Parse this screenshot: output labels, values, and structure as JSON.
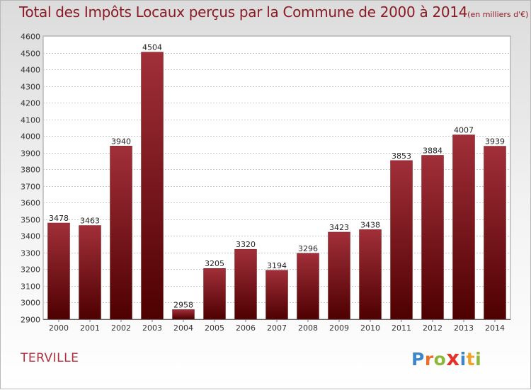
{
  "header": {
    "title": "Total des Impôts Locaux perçus par la Commune de 2000 à 2014",
    "unit": "(en milliers d'€)"
  },
  "footer": {
    "commune": "TERVILLE",
    "logo_text": "Proxiti"
  },
  "colors": {
    "title": "#8b1a24",
    "bar_top": "#a12f3a",
    "bar_bottom": "#4e0000",
    "commune": "#b03040",
    "logo_letters": [
      "#3f86c8",
      "#e96d2c",
      "#8cb83a",
      "#e3322b",
      "#3f86c8",
      "#f1a32c",
      "#8cb83a"
    ]
  },
  "chart_data": {
    "type": "bar",
    "title": "Total des Impôts Locaux perçus par la Commune de 2000 à 2014",
    "categories": [
      "2000",
      "2001",
      "2002",
      "2003",
      "2004",
      "2005",
      "2006",
      "2007",
      "2008",
      "2009",
      "2010",
      "2011",
      "2012",
      "2013",
      "2014"
    ],
    "values": [
      3478,
      3463,
      3940,
      4504,
      2958,
      3205,
      3320,
      3194,
      3296,
      3423,
      3438,
      3853,
      3884,
      4007,
      3939
    ],
    "ylim": [
      2900,
      4600
    ],
    "yticks": [
      2900,
      3000,
      3100,
      3200,
      3300,
      3400,
      3500,
      3600,
      3700,
      3800,
      3900,
      4000,
      4100,
      4200,
      4300,
      4400,
      4500,
      4600
    ],
    "grid": true,
    "xlabel": "",
    "ylabel": ""
  }
}
